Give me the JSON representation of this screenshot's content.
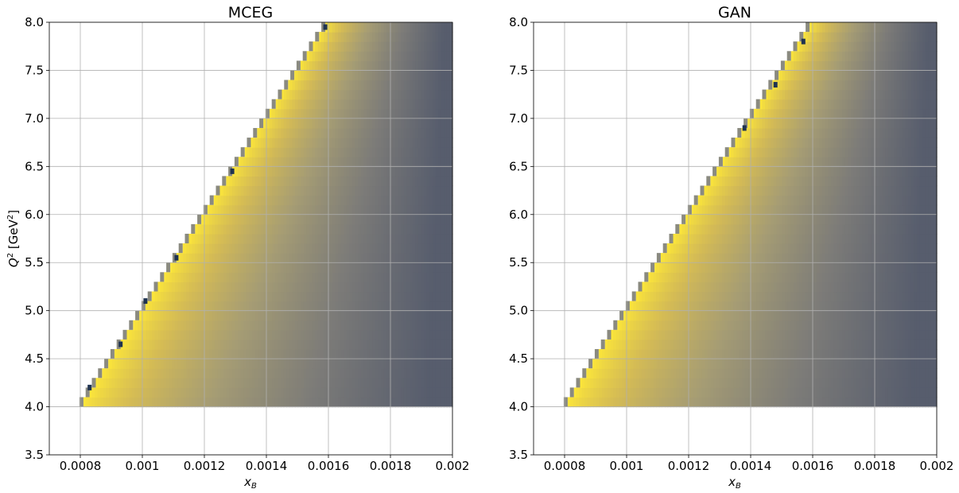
{
  "chart_data": [
    {
      "type": "heatmap",
      "title": "MCEG",
      "xlabel_main": "x",
      "xlabel_sub": "B",
      "ylabel_main": "Q",
      "ylabel_sup1": "2",
      "ylabel_mid": " [GeV",
      "ylabel_sup2": "2",
      "ylabel_end": "]",
      "xlim": [
        0.0007,
        0.002
      ],
      "ylim": [
        3.5,
        8.0
      ],
      "xticks": [
        0.0008,
        0.001,
        0.0012,
        0.0014,
        0.0016,
        0.0018,
        0.002
      ],
      "xtick_labels": [
        "0.0008",
        "0.001",
        "0.0012",
        "0.0014",
        "0.0016",
        "0.0018",
        "0.002"
      ],
      "yticks": [
        3.5,
        4.0,
        4.5,
        5.0,
        5.5,
        6.0,
        6.5,
        7.0,
        7.5,
        8.0
      ],
      "ytick_labels": [
        "3.5",
        "4.0",
        "4.5",
        "5.0",
        "5.5",
        "6.0",
        "6.5",
        "7.0",
        "7.5",
        "8.0"
      ],
      "grid": true,
      "heatmap_region": {
        "q2_min": 4.0,
        "q2_max": 8.0,
        "x_max": 0.002,
        "edge_x_at_q2_min": 0.0008,
        "edge_slope_x_per_q2": 0.0002,
        "bins_x": 130,
        "bins_q2": 40
      },
      "edge_dark_points": [
        [
          0.00083,
          4.2
        ],
        [
          0.00093,
          4.65
        ],
        [
          0.00101,
          5.1
        ],
        [
          0.00111,
          5.55
        ],
        [
          0.00129,
          6.45
        ],
        [
          0.00159,
          7.95
        ]
      ],
      "colormap": [
        "#575d6d",
        "#7c7b78",
        "#a59c74",
        "#d4bb55",
        "#fee838"
      ]
    },
    {
      "type": "heatmap",
      "title": "GAN",
      "xlabel_main": "x",
      "xlabel_sub": "B",
      "xlim": [
        0.0007,
        0.002
      ],
      "ylim": [
        3.5,
        8.0
      ],
      "xticks": [
        0.0008,
        0.001,
        0.0012,
        0.0014,
        0.0016,
        0.0018,
        0.002
      ],
      "xtick_labels": [
        "0.0008",
        "0.001",
        "0.0012",
        "0.0014",
        "0.0016",
        "0.0018",
        "0.002"
      ],
      "yticks": [
        3.5,
        4.0,
        4.5,
        5.0,
        5.5,
        6.0,
        6.5,
        7.0,
        7.5,
        8.0
      ],
      "ytick_labels": [
        "3.5",
        "4.0",
        "4.5",
        "5.0",
        "5.5",
        "6.0",
        "6.5",
        "7.0",
        "7.5",
        "8.0"
      ],
      "grid": true,
      "heatmap_region": {
        "q2_min": 4.0,
        "q2_max": 8.0,
        "x_max": 0.002,
        "edge_x_at_q2_min": 0.0008,
        "edge_slope_x_per_q2": 0.0002,
        "bins_x": 130,
        "bins_q2": 40
      },
      "edge_dark_points": [
        [
          0.00138,
          6.9
        ],
        [
          0.00148,
          7.35
        ],
        [
          0.00157,
          7.8
        ]
      ],
      "colormap": [
        "#575d6d",
        "#7c7b78",
        "#a59c74",
        "#d4bb55",
        "#fee838"
      ]
    }
  ]
}
